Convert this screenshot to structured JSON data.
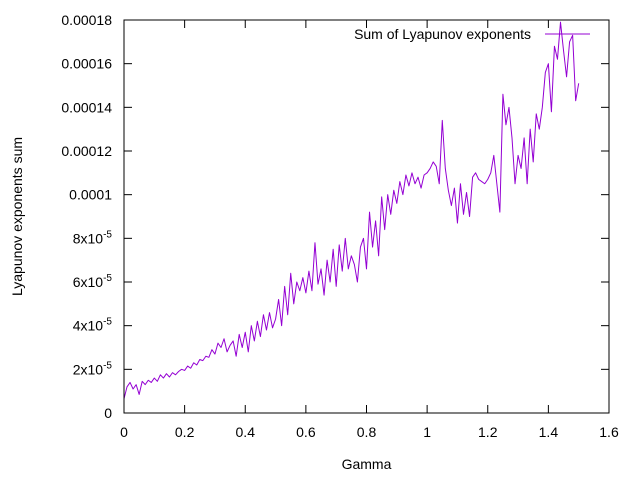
{
  "chart_data": {
    "type": "line",
    "title": "",
    "xlabel": "Gamma",
    "ylabel": "Lyapunov exponents sum",
    "xlim": [
      0,
      1.6
    ],
    "ylim": [
      0,
      0.00018
    ],
    "grid": false,
    "legend_position": "top-right",
    "x_tick_labels": [
      "0",
      "0.2",
      "0.4",
      "0.6",
      "0.8",
      "1",
      "1.2",
      "1.4",
      "1.6"
    ],
    "x_tick_values": [
      0,
      0.2,
      0.4,
      0.6,
      0.8,
      1.0,
      1.2,
      1.4,
      1.6
    ],
    "y_ticks": [
      {
        "value": 0,
        "base": "0",
        "exp": ""
      },
      {
        "value": 2e-05,
        "base": "2x10",
        "exp": "-5"
      },
      {
        "value": 4e-05,
        "base": "4x10",
        "exp": "-5"
      },
      {
        "value": 6e-05,
        "base": "6x10",
        "exp": "-5"
      },
      {
        "value": 8e-05,
        "base": "8x10",
        "exp": "-5"
      },
      {
        "value": 0.0001,
        "base": "0.0001",
        "exp": ""
      },
      {
        "value": 0.00012,
        "base": "0.00012",
        "exp": ""
      },
      {
        "value": 0.00014,
        "base": "0.00014",
        "exp": ""
      },
      {
        "value": 0.00016,
        "base": "0.00016",
        "exp": ""
      },
      {
        "value": 0.00018,
        "base": "0.00018",
        "exp": ""
      }
    ],
    "series": [
      {
        "name": "Sum of Lyapunov exponents",
        "color": "#9400d3",
        "points": [
          [
            0.0,
            6.5e-06
          ],
          [
            0.01,
            1.2e-05
          ],
          [
            0.02,
            1.4e-05
          ],
          [
            0.03,
            1.1e-05
          ],
          [
            0.04,
            1.3e-05
          ],
          [
            0.05,
            8.5e-06
          ],
          [
            0.06,
            1.45e-05
          ],
          [
            0.07,
            1.3e-05
          ],
          [
            0.08,
            1.5e-05
          ],
          [
            0.09,
            1.4e-05
          ],
          [
            0.1,
            1.6e-05
          ],
          [
            0.11,
            1.45e-05
          ],
          [
            0.12,
            1.75e-05
          ],
          [
            0.13,
            1.6e-05
          ],
          [
            0.14,
            1.8e-05
          ],
          [
            0.15,
            1.65e-05
          ],
          [
            0.16,
            1.85e-05
          ],
          [
            0.17,
            1.75e-05
          ],
          [
            0.18,
            1.9e-05
          ],
          [
            0.19,
            2e-05
          ],
          [
            0.2,
            1.95e-05
          ],
          [
            0.21,
            2.15e-05
          ],
          [
            0.22,
            2.05e-05
          ],
          [
            0.23,
            2.3e-05
          ],
          [
            0.24,
            2.2e-05
          ],
          [
            0.25,
            2.45e-05
          ],
          [
            0.26,
            2.4e-05
          ],
          [
            0.27,
            2.6e-05
          ],
          [
            0.28,
            2.55e-05
          ],
          [
            0.29,
            2.9e-05
          ],
          [
            0.3,
            2.7e-05
          ],
          [
            0.31,
            3.2e-05
          ],
          [
            0.32,
            3e-05
          ],
          [
            0.33,
            3.4e-05
          ],
          [
            0.34,
            2.8e-05
          ],
          [
            0.35,
            3.1e-05
          ],
          [
            0.36,
            3.3e-05
          ],
          [
            0.37,
            2.6e-05
          ],
          [
            0.38,
            3.6e-05
          ],
          [
            0.39,
            3e-05
          ],
          [
            0.4,
            3.7e-05
          ],
          [
            0.41,
            2.8e-05
          ],
          [
            0.42,
            4e-05
          ],
          [
            0.43,
            3.3e-05
          ],
          [
            0.44,
            4.2e-05
          ],
          [
            0.45,
            3.5e-05
          ],
          [
            0.46,
            4.5e-05
          ],
          [
            0.47,
            3.8e-05
          ],
          [
            0.48,
            4.6e-05
          ],
          [
            0.49,
            3.9e-05
          ],
          [
            0.5,
            4.3e-05
          ],
          [
            0.51,
            5.2e-05
          ],
          [
            0.52,
            4e-05
          ],
          [
            0.53,
            5.8e-05
          ],
          [
            0.54,
            4.5e-05
          ],
          [
            0.55,
            6.4e-05
          ],
          [
            0.56,
            5e-05
          ],
          [
            0.57,
            6e-05
          ],
          [
            0.58,
            5.6e-05
          ],
          [
            0.59,
            6.2e-05
          ],
          [
            0.6,
            5.5e-05
          ],
          [
            0.61,
            6.5e-05
          ],
          [
            0.62,
            5.6e-05
          ],
          [
            0.63,
            7.8e-05
          ],
          [
            0.64,
            5.9e-05
          ],
          [
            0.65,
            6.6e-05
          ],
          [
            0.66,
            5.4e-05
          ],
          [
            0.67,
            7e-05
          ],
          [
            0.68,
            6e-05
          ],
          [
            0.69,
            7.5e-05
          ],
          [
            0.7,
            5.8e-05
          ],
          [
            0.71,
            7.7e-05
          ],
          [
            0.72,
            6.5e-05
          ],
          [
            0.73,
            8e-05
          ],
          [
            0.74,
            6.6e-05
          ],
          [
            0.75,
            7.2e-05
          ],
          [
            0.76,
            6.8e-05
          ],
          [
            0.77,
            6e-05
          ],
          [
            0.78,
            7.6e-05
          ],
          [
            0.79,
            8e-05
          ],
          [
            0.8,
            6.6e-05
          ],
          [
            0.81,
            9.2e-05
          ],
          [
            0.82,
            7.6e-05
          ],
          [
            0.83,
            8.8e-05
          ],
          [
            0.84,
            7.2e-05
          ],
          [
            0.85,
            9.9e-05
          ],
          [
            0.86,
            8.4e-05
          ],
          [
            0.87,
            0.0001
          ],
          [
            0.88,
            9.1e-05
          ],
          [
            0.89,
            0.000102
          ],
          [
            0.9,
            9.6e-05
          ],
          [
            0.91,
            0.000106
          ],
          [
            0.92,
            0.0001
          ],
          [
            0.93,
            0.000109
          ],
          [
            0.94,
            0.000104
          ],
          [
            0.95,
            0.00011
          ],
          [
            0.96,
            0.000105
          ],
          [
            0.97,
            0.000108
          ],
          [
            0.98,
            0.000103
          ],
          [
            0.99,
            0.000109
          ],
          [
            1.0,
            0.00011
          ],
          [
            1.01,
            0.000112
          ],
          [
            1.02,
            0.000115
          ],
          [
            1.03,
            0.000113
          ],
          [
            1.04,
            0.000105
          ],
          [
            1.05,
            0.000134
          ],
          [
            1.06,
            0.000112
          ],
          [
            1.07,
            0.000102
          ],
          [
            1.08,
            9.5e-05
          ],
          [
            1.09,
            0.000103
          ],
          [
            1.1,
            8.7e-05
          ],
          [
            1.11,
            0.000105
          ],
          [
            1.12,
            9.1e-05
          ],
          [
            1.13,
            0.000101
          ],
          [
            1.14,
            9e-05
          ],
          [
            1.15,
            0.000108
          ],
          [
            1.16,
            0.00011
          ],
          [
            1.17,
            0.000107
          ],
          [
            1.18,
            0.000106
          ],
          [
            1.19,
            0.000105
          ],
          [
            1.2,
            0.000107
          ],
          [
            1.21,
            0.00011
          ],
          [
            1.22,
            0.000118
          ],
          [
            1.23,
            0.000105
          ],
          [
            1.24,
            9.2e-05
          ],
          [
            1.25,
            0.000146
          ],
          [
            1.26,
            0.000132
          ],
          [
            1.27,
            0.00014
          ],
          [
            1.28,
            0.000126
          ],
          [
            1.29,
            0.000105
          ],
          [
            1.3,
            0.000118
          ],
          [
            1.31,
            0.000112
          ],
          [
            1.32,
            0.000126
          ],
          [
            1.33,
            0.000105
          ],
          [
            1.34,
            0.00013
          ],
          [
            1.35,
            0.000115
          ],
          [
            1.36,
            0.000137
          ],
          [
            1.37,
            0.00013
          ],
          [
            1.38,
            0.00014
          ],
          [
            1.39,
            0.000156
          ],
          [
            1.4,
            0.00016
          ],
          [
            1.41,
            0.000138
          ],
          [
            1.42,
            0.000168
          ],
          [
            1.43,
            0.000162
          ],
          [
            1.44,
            0.000179
          ],
          [
            1.45,
            0.000166
          ],
          [
            1.46,
            0.000154
          ],
          [
            1.47,
            0.00017
          ],
          [
            1.48,
            0.000173
          ],
          [
            1.49,
            0.000143
          ],
          [
            1.5,
            0.000151
          ]
        ]
      }
    ]
  }
}
